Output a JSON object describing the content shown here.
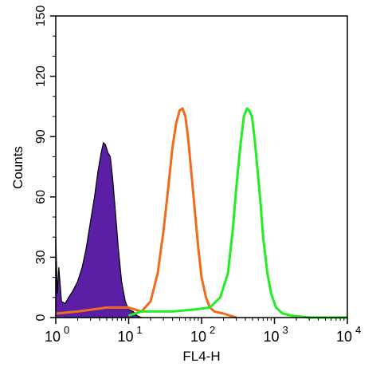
{
  "chart_data": {
    "type": "area",
    "xlabel": "FL4-H",
    "ylabel": "Counts",
    "xscale": "log",
    "xlim": [
      1,
      10000
    ],
    "ylim": [
      0,
      150
    ],
    "x_ticks": [
      {
        "value": 1,
        "base": "10",
        "exp": "0"
      },
      {
        "value": 10,
        "base": "10",
        "exp": "1"
      },
      {
        "value": 100,
        "base": "10",
        "exp": "2"
      },
      {
        "value": 1000,
        "base": "10",
        "exp": "3"
      },
      {
        "value": 10000,
        "base": "10",
        "exp": "4"
      }
    ],
    "y_ticks": [
      "0",
      "30",
      "60",
      "90",
      "120",
      "150"
    ],
    "series": [
      {
        "color": "#5b1fa6",
        "style": "filled",
        "x": [
          1.0,
          1.05,
          1.1,
          1.2,
          1.35,
          1.5,
          1.7,
          2.0,
          2.3,
          2.6,
          3.0,
          3.4,
          3.8,
          4.2,
          4.5,
          4.8,
          5.2,
          5.6,
          6.0,
          6.5,
          7.2,
          8.0,
          9.0,
          10.0,
          11.5,
          13.0,
          15.0
        ],
        "y": [
          40,
          12,
          25,
          8,
          7,
          10,
          13,
          18,
          25,
          34,
          48,
          60,
          73,
          82,
          87,
          86,
          82,
          80,
          70,
          55,
          35,
          18,
          8,
          4,
          3,
          1,
          0
        ]
      },
      {
        "color": "#f26b1d",
        "style": "line",
        "x": [
          1.0,
          2.0,
          5.0,
          10.0,
          15.0,
          20.0,
          25.0,
          30.0,
          35.0,
          40.0,
          45.0,
          50.0,
          55.0,
          60.0,
          65.0,
          70.0,
          80.0,
          90.0,
          100.0,
          115.0,
          130.0,
          150.0,
          200.0,
          300.0
        ],
        "y": [
          2,
          3,
          5,
          5,
          3,
          8,
          22,
          43,
          65,
          85,
          97,
          103,
          104,
          100,
          90,
          78,
          55,
          35,
          20,
          10,
          5,
          3,
          2,
          0
        ]
      },
      {
        "color": "#22ee22",
        "style": "line",
        "x": [
          10.0,
          15.0,
          20.0,
          40.0,
          80.0,
          130.0,
          180.0,
          230.0,
          270.0,
          300.0,
          340.0,
          380.0,
          420.0,
          450.0,
          490.0,
          530.0,
          580.0,
          640.0,
          700.0,
          800.0,
          900.0,
          1050.0,
          1300.0,
          1700.0,
          3000.0,
          10000.0
        ],
        "y": [
          1,
          3,
          3,
          3,
          4,
          5,
          10,
          22,
          45,
          65,
          85,
          100,
          104,
          103,
          100,
          90,
          75,
          58,
          40,
          22,
          12,
          5,
          2,
          1,
          0,
          0
        ]
      }
    ]
  }
}
